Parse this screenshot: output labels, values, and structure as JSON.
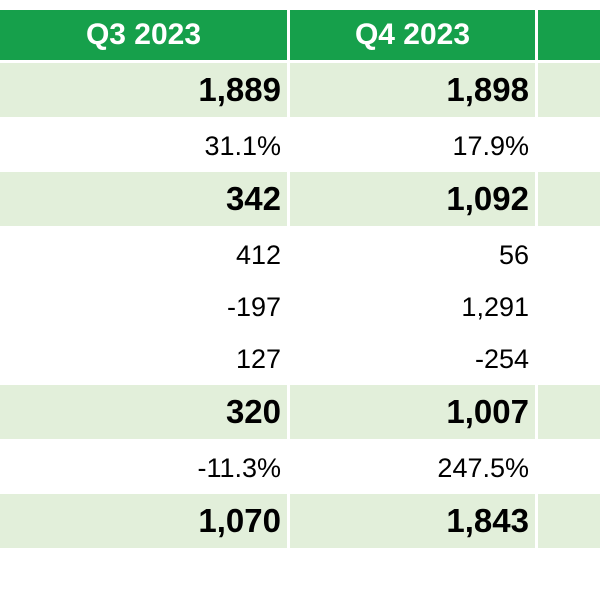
{
  "header": {
    "col1": "Q3 2023",
    "col2": "Q4 2023",
    "col3": ""
  },
  "rows": [
    {
      "q3": "1,889",
      "q4": "1,898",
      "style": "bold"
    },
    {
      "q3": "31.1%",
      "q4": "17.9%",
      "style": "plain"
    },
    {
      "q3": "342",
      "q4": "1,092",
      "style": "bold"
    },
    {
      "q3": "412",
      "q4": "56",
      "style": "plain"
    },
    {
      "q3": "-197",
      "q4": "1,291",
      "style": "plain"
    },
    {
      "q3": "127",
      "q4": "-254",
      "style": "plain"
    },
    {
      "q3": "320",
      "q4": "1,007",
      "style": "bold"
    },
    {
      "q3": "-11.3%",
      "q4": "247.5%",
      "style": "plain"
    },
    {
      "q3": "1,070",
      "q4": "1,843",
      "style": "bold"
    }
  ],
  "colors": {
    "header_bg": "#16a04b",
    "header_text": "#ffffff",
    "bold_row_bg": "#e2efda"
  }
}
